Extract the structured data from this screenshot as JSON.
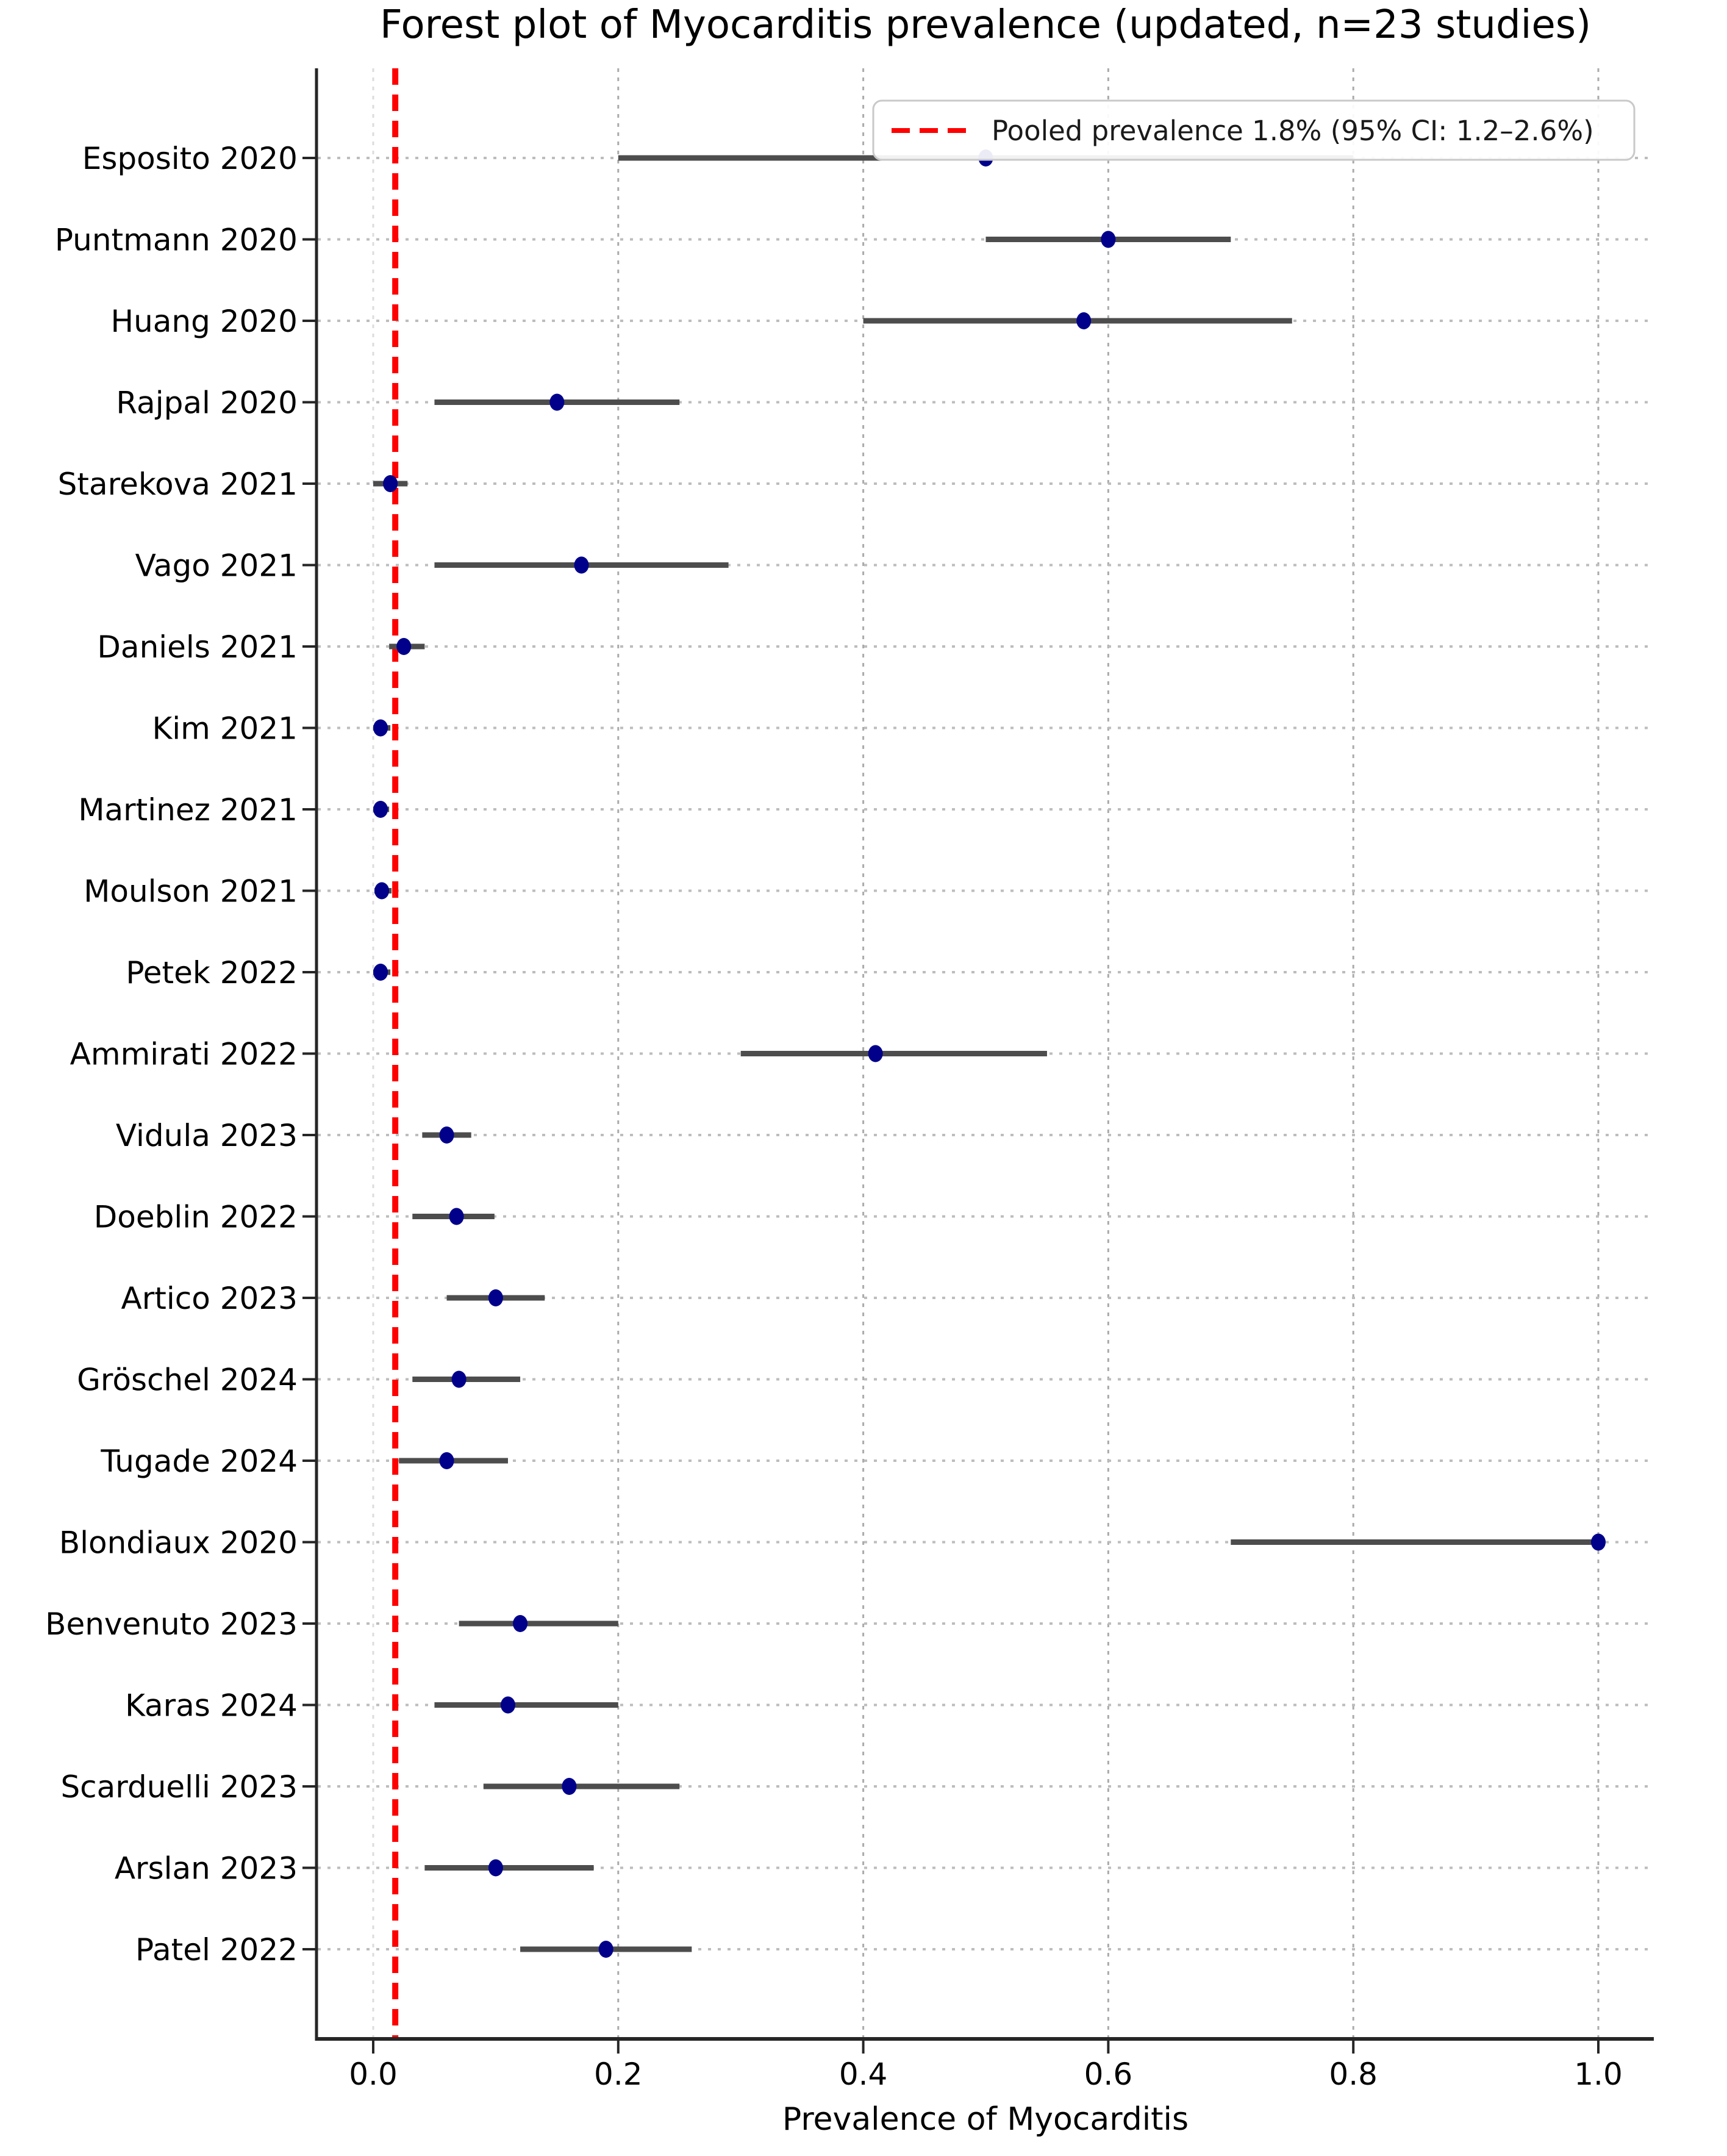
{
  "chart_data": {
    "type": "scatter",
    "variant": "forest-plot",
    "title": "Forest plot of Myocarditis prevalence (updated, n=23 studies)",
    "xlabel": "Prevalence of Myocarditis",
    "ylabel": "",
    "xlim": [
      -0.046,
      1.045
    ],
    "x_ticks": [
      0.0,
      0.2,
      0.4,
      0.6,
      0.8,
      1.0
    ],
    "x_tick_labels": [
      "0.0",
      "0.2",
      "0.4",
      "0.6",
      "0.8",
      "1.0"
    ],
    "grid": "dotted vertical gridlines at each x tick",
    "legend": {
      "position": "upper right",
      "label": "Pooled prevalence 1.8% (95% CI: 1.2–2.6%)"
    },
    "pooled": {
      "prevalence_pct": "1.8%",
      "ci_pct": "1.2–2.6%",
      "value": 0.018,
      "ci_low": 0.012,
      "ci_high": 0.026,
      "line_style": "dashed",
      "orientation": "vertical"
    },
    "studies": [
      {
        "label": "Esposito 2020",
        "estimate": 0.5,
        "ci_low": 0.2,
        "ci_high": 0.8
      },
      {
        "label": "Puntmann 2020",
        "estimate": 0.6,
        "ci_low": 0.5,
        "ci_high": 0.7
      },
      {
        "label": "Huang 2020",
        "estimate": 0.58,
        "ci_low": 0.4,
        "ci_high": 0.75
      },
      {
        "label": "Rajpal 2020",
        "estimate": 0.15,
        "ci_low": 0.05,
        "ci_high": 0.25
      },
      {
        "label": "Starekova 2021",
        "estimate": 0.014,
        "ci_low": 0.0,
        "ci_high": 0.028
      },
      {
        "label": "Vago 2021",
        "estimate": 0.17,
        "ci_low": 0.05,
        "ci_high": 0.29
      },
      {
        "label": "Daniels 2021",
        "estimate": 0.025,
        "ci_low": 0.013,
        "ci_high": 0.042
      },
      {
        "label": "Kim 2021",
        "estimate": 0.006,
        "ci_low": 0.0,
        "ci_high": 0.014
      },
      {
        "label": "Martinez 2021",
        "estimate": 0.006,
        "ci_low": 0.0,
        "ci_high": 0.013
      },
      {
        "label": "Moulson 2021",
        "estimate": 0.007,
        "ci_low": 0.001,
        "ci_high": 0.015
      },
      {
        "label": "Petek 2022",
        "estimate": 0.006,
        "ci_low": 0.0,
        "ci_high": 0.014
      },
      {
        "label": "Ammirati 2022",
        "estimate": 0.41,
        "ci_low": 0.3,
        "ci_high": 0.55
      },
      {
        "label": "Vidula 2023",
        "estimate": 0.06,
        "ci_low": 0.04,
        "ci_high": 0.08
      },
      {
        "label": "Doeblin 2022",
        "estimate": 0.068,
        "ci_low": 0.032,
        "ci_high": 0.099
      },
      {
        "label": "Artico 2023",
        "estimate": 0.1,
        "ci_low": 0.06,
        "ci_high": 0.14
      },
      {
        "label": "Gröschel 2024",
        "estimate": 0.07,
        "ci_low": 0.032,
        "ci_high": 0.12
      },
      {
        "label": "Tugade 2024",
        "estimate": 0.06,
        "ci_low": 0.021,
        "ci_high": 0.11
      },
      {
        "label": "Blondiaux 2020",
        "estimate": 1.0,
        "ci_low": 0.7,
        "ci_high": 1.0
      },
      {
        "label": "Benvenuto 2023",
        "estimate": 0.12,
        "ci_low": 0.07,
        "ci_high": 0.2
      },
      {
        "label": "Karas 2024",
        "estimate": 0.11,
        "ci_low": 0.05,
        "ci_high": 0.2
      },
      {
        "label": "Scarduelli 2023",
        "estimate": 0.16,
        "ci_low": 0.09,
        "ci_high": 0.25
      },
      {
        "label": "Arslan 2023",
        "estimate": 0.1,
        "ci_low": 0.042,
        "ci_high": 0.18
      },
      {
        "label": "Patel 2022",
        "estimate": 0.19,
        "ci_low": 0.12,
        "ci_high": 0.26
      }
    ],
    "colors": {
      "marker": "#00008B",
      "ci_line": "#4d4d4d",
      "pooled_line": "#ff0000",
      "grid": "#ababab",
      "zero_grid": "#dcdcdc",
      "row_guide": "#bdbdbd",
      "spine": "#262626",
      "tick": "#262626",
      "text": "#000000",
      "legend_border": "#c9c9c9",
      "legend_bg": "#ffffff",
      "background": "#ffffff"
    }
  }
}
